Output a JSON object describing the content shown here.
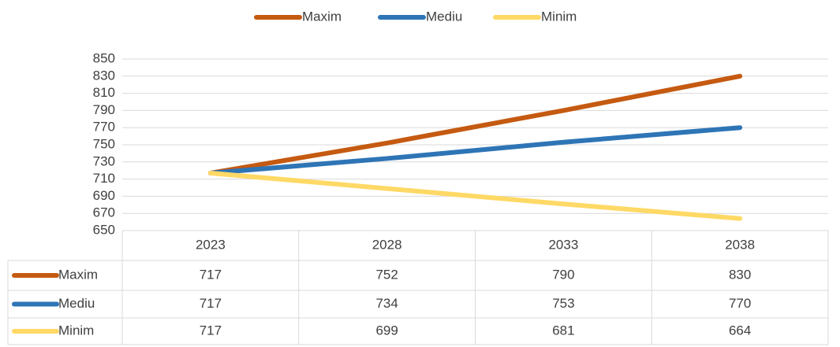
{
  "chart_data": {
    "type": "line",
    "categories": [
      "2023",
      "2028",
      "2033",
      "2038"
    ],
    "series": [
      {
        "name": "Maxim",
        "color": "#c55a11",
        "values": [
          717,
          752,
          790,
          830
        ]
      },
      {
        "name": "Mediu",
        "color": "#2e75b6",
        "values": [
          717,
          734,
          753,
          770
        ]
      },
      {
        "name": "Minim",
        "color": "#ffd966",
        "values": [
          717,
          699,
          681,
          664
        ]
      }
    ],
    "ylim": [
      650,
      850
    ],
    "yticks": [
      650,
      670,
      690,
      710,
      730,
      750,
      770,
      790,
      810,
      830,
      850
    ],
    "grid": true,
    "legend": "top",
    "data_table": true
  }
}
